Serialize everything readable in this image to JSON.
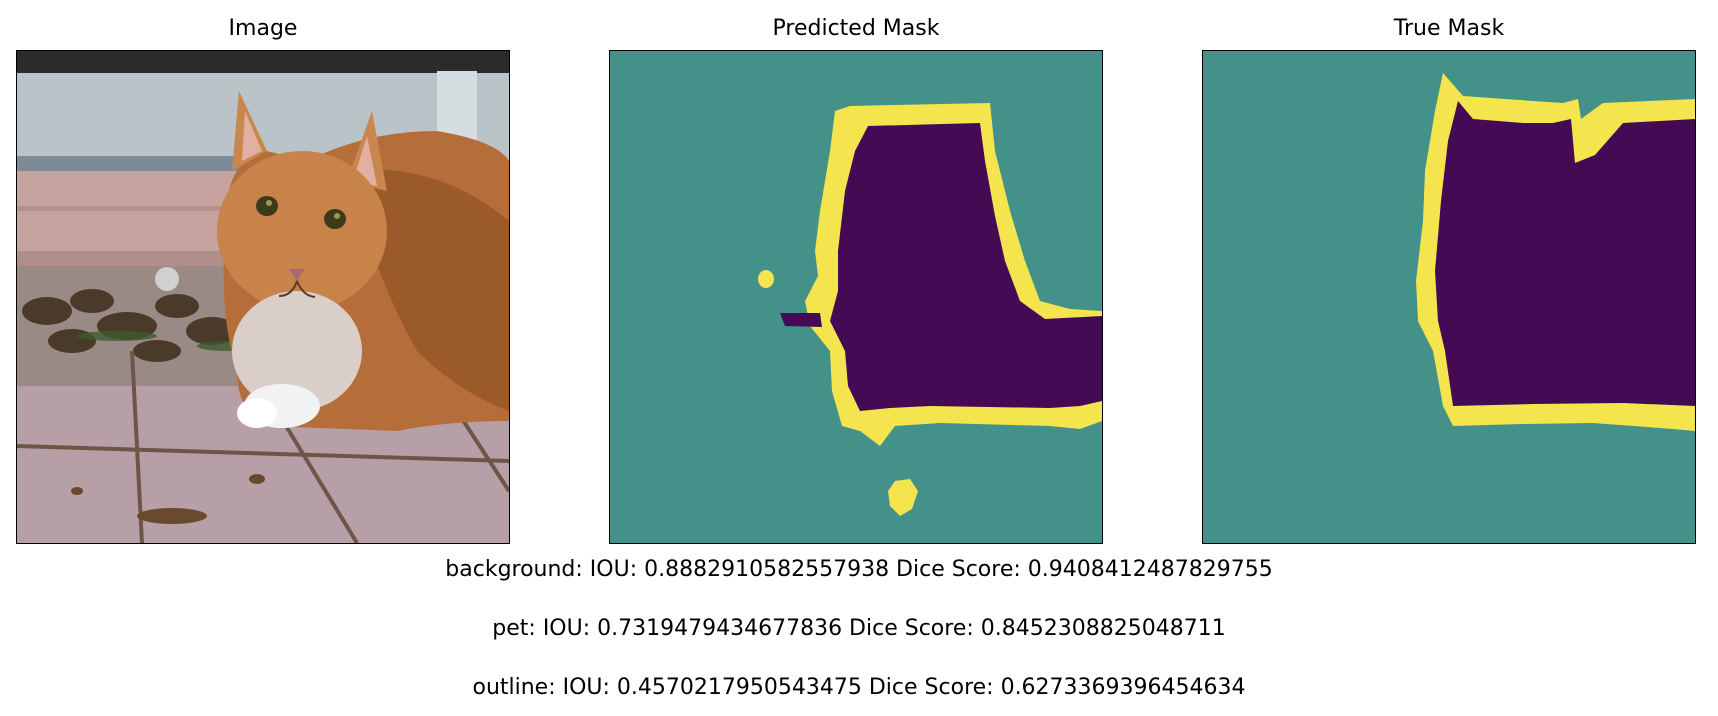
{
  "panels": {
    "image": {
      "title": "Image"
    },
    "predicted": {
      "title": "Predicted Mask"
    },
    "true": {
      "title": "True Mask"
    }
  },
  "colors": {
    "background_class": "#44918a",
    "pet_class": "#440a54",
    "outline_class": "#f4e44e"
  },
  "metrics": {
    "background": "background: IOU: 0.8882910582557938 Dice Score: 0.9408412487829755",
    "pet": "pet: IOU: 0.7319479434677836 Dice Score: 0.8452308825048711",
    "outline": "outline: IOU: 0.4570217950543475 Dice Score: 0.6273369396454634"
  }
}
